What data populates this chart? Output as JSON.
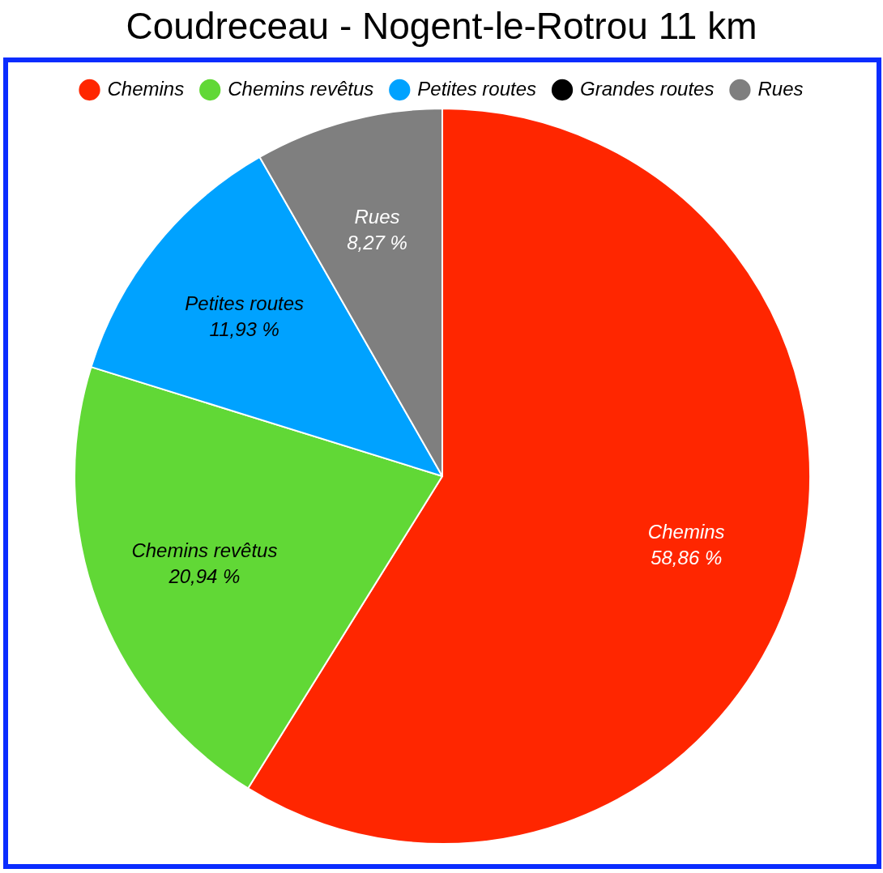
{
  "chart_data": {
    "type": "pie",
    "title": "Coudreceau - Nogent-le-Rotrou 11 km",
    "categories": [
      "Chemins",
      "Chemins revêtus",
      "Petites routes",
      "Grandes routes",
      "Rues"
    ],
    "values": [
      58.86,
      20.94,
      11.93,
      0,
      8.27
    ],
    "value_labels": [
      "58,86 %",
      "20,94 %",
      "11,93 %",
      null,
      "8,27 %"
    ],
    "colors": [
      "#ff2600",
      "#61d836",
      "#00a2ff",
      "#000000",
      "#7f7f7f"
    ],
    "legend": "top"
  }
}
